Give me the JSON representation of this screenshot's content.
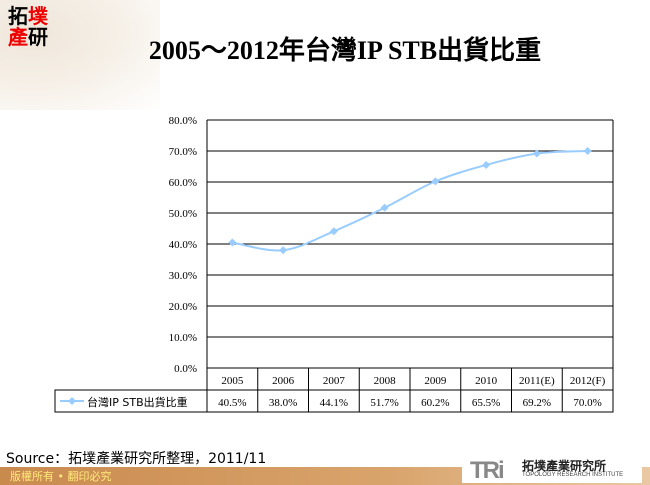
{
  "logo": {
    "chars": [
      "拓",
      "墣",
      "產",
      "研"
    ]
  },
  "title": "2005～2012年台灣IP STB出貨比重",
  "chart_data": {
    "type": "line",
    "title": "2005～2012年台灣IP STB出貨比重",
    "categories": [
      "2005",
      "2006",
      "2007",
      "2008",
      "2009",
      "2010",
      "2011(E)",
      "2012(F)"
    ],
    "series": [
      {
        "name": "台灣IP STB出貨比重",
        "values": [
          40.5,
          38.0,
          44.1,
          51.7,
          60.2,
          65.5,
          69.2,
          70.0
        ],
        "labels": [
          "40.5%",
          "38.0%",
          "44.1%",
          "51.7%",
          "60.2%",
          "65.5%",
          "69.2%",
          "70.0%"
        ],
        "color": "#99ccff"
      }
    ],
    "yticks": [
      "0.0%",
      "10.0%",
      "20.0%",
      "30.0%",
      "40.0%",
      "50.0%",
      "60.0%",
      "70.0%",
      "80.0%"
    ],
    "ylim": [
      0,
      80
    ],
    "grid": true,
    "legend": "data-table"
  },
  "source": "Source：拓墣產業研究所整理，2011/11",
  "footer": "版權所有 • 翻印必究",
  "brand": {
    "mark": "TRi",
    "cn": "拓墣產業研究所",
    "en": "TOPOLOGY RESEARCH INSTITUTE"
  }
}
